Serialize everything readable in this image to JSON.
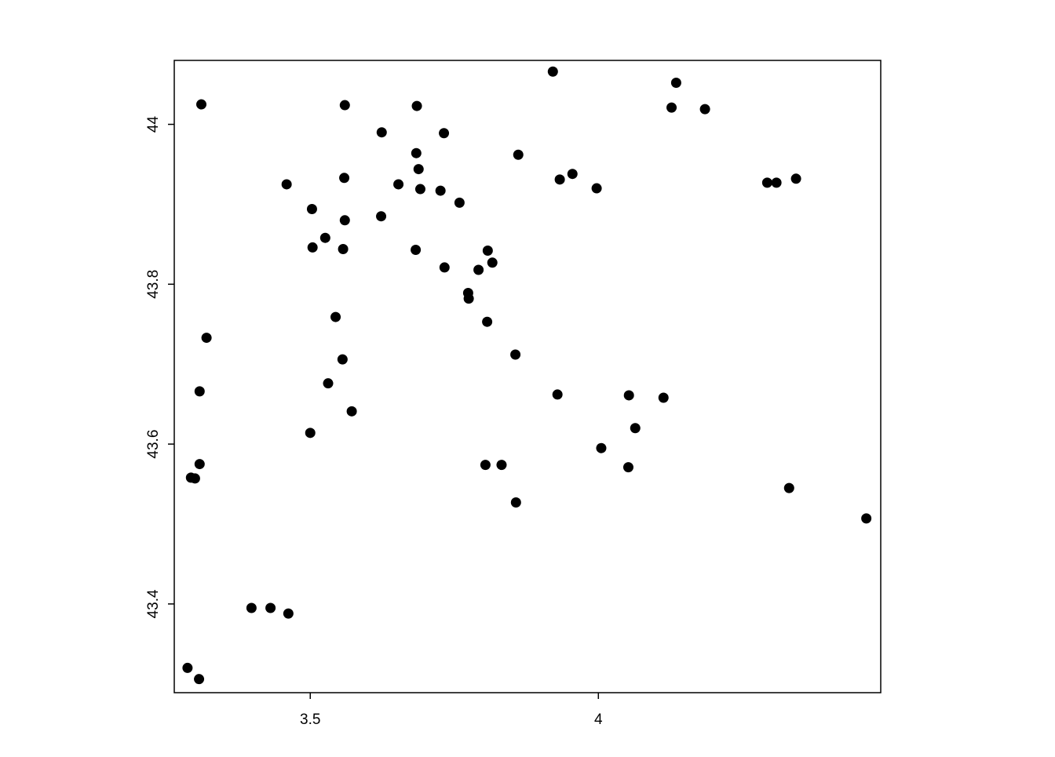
{
  "chart_data": {
    "type": "scatter",
    "title": "",
    "xlabel": "",
    "ylabel": "",
    "xlim": [
      3.264,
      4.49
    ],
    "ylim": [
      43.289,
      44.08
    ],
    "grid": false,
    "point_color": "#000000",
    "x_ticks": [
      {
        "value": 3.5,
        "label": "3.5"
      },
      {
        "value": 4,
        "label": "4"
      }
    ],
    "y_ticks": [
      {
        "value": 43.4,
        "label": "43.4"
      },
      {
        "value": 43.6,
        "label": "43.6"
      },
      {
        "value": 43.8,
        "label": "43.8"
      },
      {
        "value": 44,
        "label": "44"
      }
    ],
    "points": [
      [
        3.921,
        44.066
      ],
      [
        4.135,
        44.052
      ],
      [
        4.127,
        44.021
      ],
      [
        4.185,
        44.019
      ],
      [
        3.311,
        44.025
      ],
      [
        3.56,
        44.024
      ],
      [
        3.685,
        44.023
      ],
      [
        3.624,
        43.99
      ],
      [
        3.732,
        43.989
      ],
      [
        3.684,
        43.964
      ],
      [
        3.861,
        43.962
      ],
      [
        3.688,
        43.944
      ],
      [
        3.559,
        43.933
      ],
      [
        3.459,
        43.925
      ],
      [
        3.653,
        43.925
      ],
      [
        3.691,
        43.919
      ],
      [
        3.726,
        43.917
      ],
      [
        3.933,
        43.931
      ],
      [
        3.955,
        43.938
      ],
      [
        3.997,
        43.92
      ],
      [
        4.293,
        43.927
      ],
      [
        4.309,
        43.927
      ],
      [
        4.343,
        43.932
      ],
      [
        3.759,
        43.902
      ],
      [
        3.503,
        43.894
      ],
      [
        3.623,
        43.885
      ],
      [
        3.56,
        43.88
      ],
      [
        3.526,
        43.858
      ],
      [
        3.504,
        43.846
      ],
      [
        3.557,
        43.844
      ],
      [
        3.683,
        43.843
      ],
      [
        3.808,
        43.842
      ],
      [
        3.816,
        43.827
      ],
      [
        3.792,
        43.818
      ],
      [
        3.733,
        43.821
      ],
      [
        3.774,
        43.789
      ],
      [
        3.775,
        43.782
      ],
      [
        3.544,
        43.759
      ],
      [
        3.807,
        43.753
      ],
      [
        3.32,
        43.733
      ],
      [
        3.556,
        43.706
      ],
      [
        3.856,
        43.712
      ],
      [
        3.531,
        43.676
      ],
      [
        3.308,
        43.666
      ],
      [
        3.929,
        43.662
      ],
      [
        4.053,
        43.661
      ],
      [
        4.113,
        43.658
      ],
      [
        3.572,
        43.641
      ],
      [
        4.064,
        43.62
      ],
      [
        3.5,
        43.614
      ],
      [
        4.005,
        43.595
      ],
      [
        3.308,
        43.575
      ],
      [
        3.804,
        43.574
      ],
      [
        3.832,
        43.574
      ],
      [
        4.052,
        43.571
      ],
      [
        3.293,
        43.558
      ],
      [
        3.3,
        43.557
      ],
      [
        4.331,
        43.545
      ],
      [
        3.857,
        43.527
      ],
      [
        4.465,
        43.507
      ],
      [
        3.398,
        43.395
      ],
      [
        3.431,
        43.395
      ],
      [
        3.462,
        43.388
      ],
      [
        3.287,
        43.32
      ],
      [
        3.307,
        43.306
      ]
    ]
  }
}
